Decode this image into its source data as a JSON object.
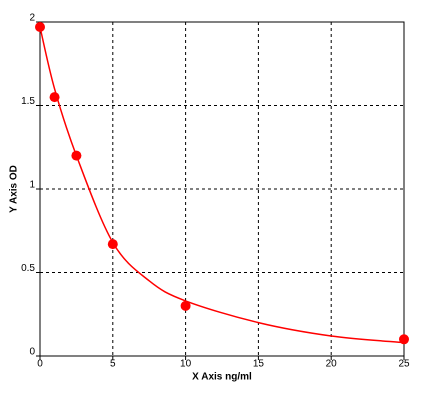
{
  "chart_data": {
    "type": "scatter",
    "x_label": "X Axis ng/ml",
    "y_label": "Y Axis OD",
    "xlim": [
      0,
      25
    ],
    "ylim": [
      0,
      2
    ],
    "xticks": [
      0,
      5,
      10,
      15,
      20,
      25
    ],
    "yticks": [
      0,
      0.5,
      1,
      1.5,
      2
    ],
    "grid": true,
    "series": [
      {
        "type": "line",
        "color": "#ff0000",
        "x": [
          0,
          1,
          2.5,
          5,
          7.5,
          10,
          15,
          20,
          25
        ],
        "values": [
          1.97,
          1.6,
          1.2,
          0.68,
          0.45,
          0.33,
          0.2,
          0.12,
          0.08
        ]
      },
      {
        "type": "scatter",
        "color": "#ff0000",
        "x": [
          0,
          1,
          2.5,
          5,
          10,
          25
        ],
        "values": [
          1.97,
          1.55,
          1.2,
          0.67,
          0.3,
          0.1
        ]
      }
    ]
  }
}
